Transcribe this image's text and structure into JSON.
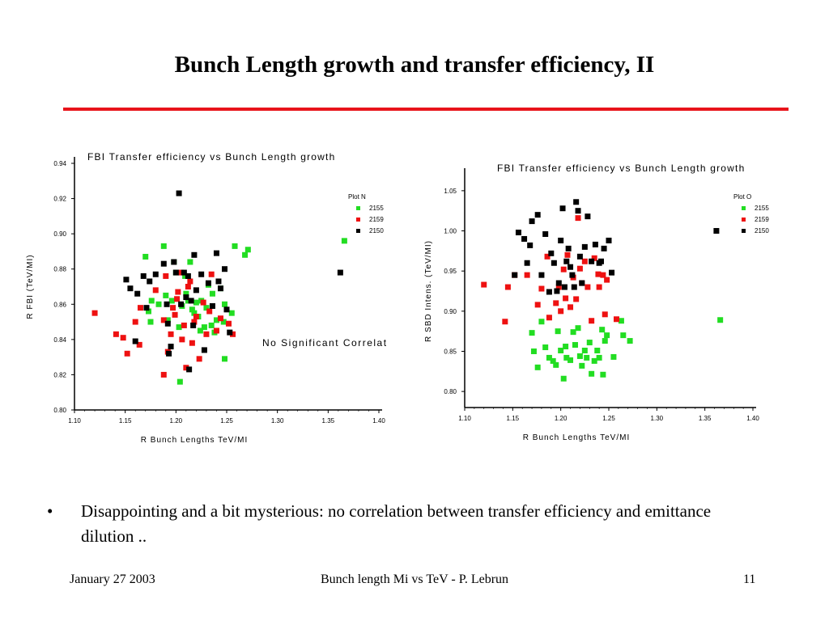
{
  "slide": {
    "title": "Bunch Length growth and transfer efficiency, II",
    "colors": {
      "rule": "#e8141b",
      "green": "#22dd22",
      "red": "#ee1111",
      "black": "#000000"
    },
    "bullet_marker": "•",
    "bullet_text": "Disappointing and a bit mysterious: no correlation between transfer efficiency and emittance dilution ..",
    "footer": {
      "date": "January  27  2003",
      "center": "Bunch length Mi vs TeV - P. Lebrun",
      "page": "11"
    }
  },
  "chart_data": [
    {
      "type": "scatter",
      "title": "FBI Transfer efficiency vs Bunch Length growth",
      "xlabel": "R Bunch Lengths TeV/MI",
      "ylabel": "R FBI (TeV/MI)",
      "xlim": [
        1.1,
        1.4
      ],
      "ylim": [
        0.8,
        0.94
      ],
      "xticks": [
        "1.10",
        "1.15",
        "1.20",
        "1.25",
        "1.30",
        "1.35",
        "1.40"
      ],
      "yticks": [
        "0.80",
        "0.82",
        "0.84",
        "0.86",
        "0.88",
        "0.90",
        "0.92",
        "0.94"
      ],
      "legend": {
        "title": "Plot N",
        "position": "top-right"
      },
      "annotation": "No Significant Correlat",
      "series": [
        {
          "name": "2155",
          "color": "#22dd22",
          "points": [
            [
              1.17,
              0.887
            ],
            [
              1.173,
              0.856
            ],
            [
              1.175,
              0.85
            ],
            [
              1.176,
              0.862
            ],
            [
              1.183,
              0.86
            ],
            [
              1.188,
              0.893
            ],
            [
              1.19,
              0.865
            ],
            [
              1.192,
              0.851
            ],
            [
              1.196,
              0.862
            ],
            [
              1.198,
              0.884
            ],
            [
              1.2,
              0.878
            ],
            [
              1.203,
              0.847
            ],
            [
              1.204,
              0.816
            ],
            [
              1.206,
              0.859
            ],
            [
              1.209,
              0.876
            ],
            [
              1.21,
              0.866
            ],
            [
              1.212,
              0.862
            ],
            [
              1.214,
              0.884
            ],
            [
              1.216,
              0.857
            ],
            [
              1.218,
              0.855
            ],
            [
              1.22,
              0.861
            ],
            [
              1.222,
              0.853
            ],
            [
              1.224,
              0.845
            ],
            [
              1.225,
              0.862
            ],
            [
              1.228,
              0.847
            ],
            [
              1.23,
              0.858
            ],
            [
              1.232,
              0.871
            ],
            [
              1.235,
              0.848
            ],
            [
              1.236,
              0.866
            ],
            [
              1.238,
              0.844
            ],
            [
              1.24,
              0.851
            ],
            [
              1.244,
              0.869
            ],
            [
              1.247,
              0.85
            ],
            [
              1.248,
              0.86
            ],
            [
              1.248,
              0.829
            ],
            [
              1.255,
              0.855
            ],
            [
              1.258,
              0.893
            ],
            [
              1.268,
              0.888
            ],
            [
              1.271,
              0.891
            ],
            [
              1.366,
              0.896
            ]
          ]
        },
        {
          "name": "2159",
          "color": "#ee1111",
          "points": [
            [
              1.12,
              0.855
            ],
            [
              1.141,
              0.843
            ],
            [
              1.148,
              0.841
            ],
            [
              1.152,
              0.832
            ],
            [
              1.16,
              0.85
            ],
            [
              1.164,
              0.837
            ],
            [
              1.165,
              0.858
            ],
            [
              1.18,
              0.868
            ],
            [
              1.188,
              0.851
            ],
            [
              1.188,
              0.82
            ],
            [
              1.19,
              0.876
            ],
            [
              1.192,
              0.833
            ],
            [
              1.195,
              0.843
            ],
            [
              1.197,
              0.858
            ],
            [
              1.199,
              0.854
            ],
            [
              1.201,
              0.863
            ],
            [
              1.202,
              0.867
            ],
            [
              1.205,
              0.878
            ],
            [
              1.206,
              0.84
            ],
            [
              1.208,
              0.848
            ],
            [
              1.21,
              0.824
            ],
            [
              1.212,
              0.87
            ],
            [
              1.214,
              0.873
            ],
            [
              1.216,
              0.838
            ],
            [
              1.218,
              0.85
            ],
            [
              1.22,
              0.853
            ],
            [
              1.223,
              0.829
            ],
            [
              1.227,
              0.861
            ],
            [
              1.23,
              0.843
            ],
            [
              1.233,
              0.856
            ],
            [
              1.235,
              0.877
            ],
            [
              1.24,
              0.845
            ],
            [
              1.244,
              0.852
            ],
            [
              1.252,
              0.849
            ],
            [
              1.256,
              0.843
            ]
          ]
        },
        {
          "name": "2150",
          "color": "#000000",
          "points": [
            [
              1.151,
              0.874
            ],
            [
              1.155,
              0.869
            ],
            [
              1.16,
              0.839
            ],
            [
              1.162,
              0.866
            ],
            [
              1.168,
              0.876
            ],
            [
              1.171,
              0.858
            ],
            [
              1.174,
              0.873
            ],
            [
              1.18,
              0.877
            ],
            [
              1.188,
              0.883
            ],
            [
              1.191,
              0.86
            ],
            [
              1.192,
              0.849
            ],
            [
              1.193,
              0.832
            ],
            [
              1.195,
              0.836
            ],
            [
              1.198,
              0.884
            ],
            [
              1.2,
              0.878
            ],
            [
              1.203,
              0.923
            ],
            [
              1.205,
              0.86
            ],
            [
              1.208,
              0.878
            ],
            [
              1.21,
              0.864
            ],
            [
              1.212,
              0.876
            ],
            [
              1.213,
              0.823
            ],
            [
              1.215,
              0.862
            ],
            [
              1.217,
              0.848
            ],
            [
              1.218,
              0.888
            ],
            [
              1.22,
              0.868
            ],
            [
              1.225,
              0.877
            ],
            [
              1.228,
              0.834
            ],
            [
              1.232,
              0.872
            ],
            [
              1.236,
              0.859
            ],
            [
              1.24,
              0.889
            ],
            [
              1.242,
              0.873
            ],
            [
              1.244,
              0.869
            ],
            [
              1.248,
              0.88
            ],
            [
              1.25,
              0.857
            ],
            [
              1.253,
              0.844
            ],
            [
              1.362,
              0.878
            ]
          ]
        }
      ]
    },
    {
      "type": "scatter",
      "title": "FBI Transfer efficiency vs Bunch Length growth",
      "xlabel": "R Bunch Lengths TeV/MI",
      "ylabel": "R SBD Intens. (TeV/MI)",
      "xlim": [
        1.1,
        1.4
      ],
      "ylim": [
        0.78,
        1.07
      ],
      "xticks": [
        "1.10",
        "1.15",
        "1.20",
        "1.25",
        "1.30",
        "1.35",
        "1.40"
      ],
      "yticks": [
        "0.80",
        "0.85",
        "0.90",
        "0.95",
        "1.00",
        "1.05"
      ],
      "legend": {
        "title": "Plot O",
        "position": "top-right"
      },
      "series": [
        {
          "name": "2155",
          "color": "#22dd22",
          "points": [
            [
              1.17,
              0.873
            ],
            [
              1.172,
              0.85
            ],
            [
              1.176,
              0.83
            ],
            [
              1.18,
              0.887
            ],
            [
              1.184,
              0.855
            ],
            [
              1.188,
              0.842
            ],
            [
              1.192,
              0.838
            ],
            [
              1.195,
              0.833
            ],
            [
              1.197,
              0.875
            ],
            [
              1.2,
              0.851
            ],
            [
              1.203,
              0.816
            ],
            [
              1.205,
              0.856
            ],
            [
              1.206,
              0.842
            ],
            [
              1.21,
              0.839
            ],
            [
              1.213,
              0.874
            ],
            [
              1.215,
              0.858
            ],
            [
              1.218,
              0.879
            ],
            [
              1.22,
              0.844
            ],
            [
              1.222,
              0.832
            ],
            [
              1.225,
              0.851
            ],
            [
              1.227,
              0.842
            ],
            [
              1.23,
              0.861
            ],
            [
              1.232,
              0.822
            ],
            [
              1.235,
              0.838
            ],
            [
              1.238,
              0.851
            ],
            [
              1.24,
              0.842
            ],
            [
              1.243,
              0.877
            ],
            [
              1.244,
              0.821
            ],
            [
              1.246,
              0.863
            ],
            [
              1.248,
              0.87
            ],
            [
              1.255,
              0.843
            ],
            [
              1.265,
              0.87
            ],
            [
              1.272,
              0.863
            ],
            [
              1.263,
              0.888
            ],
            [
              1.366,
              0.889
            ]
          ]
        },
        {
          "name": "2159",
          "color": "#ee1111",
          "points": [
            [
              1.12,
              0.933
            ],
            [
              1.142,
              0.887
            ],
            [
              1.145,
              0.93
            ],
            [
              1.152,
              0.945
            ],
            [
              1.165,
              0.945
            ],
            [
              1.176,
              0.908
            ],
            [
              1.18,
              0.928
            ],
            [
              1.186,
              0.968
            ],
            [
              1.188,
              0.892
            ],
            [
              1.195,
              0.91
            ],
            [
              1.198,
              0.93
            ],
            [
              1.2,
              0.9
            ],
            [
              1.203,
              0.952
            ],
            [
              1.205,
              0.916
            ],
            [
              1.207,
              0.97
            ],
            [
              1.21,
              0.905
            ],
            [
              1.213,
              0.942
            ],
            [
              1.216,
              0.915
            ],
            [
              1.22,
              0.953
            ],
            [
              1.222,
              0.935
            ],
            [
              1.225,
              0.962
            ],
            [
              1.228,
              0.93
            ],
            [
              1.232,
              0.888
            ],
            [
              1.235,
              0.966
            ],
            [
              1.239,
              0.946
            ],
            [
              1.24,
              0.93
            ],
            [
              1.244,
              0.945
            ],
            [
              1.246,
              0.896
            ],
            [
              1.248,
              0.939
            ],
            [
              1.258,
              0.89
            ],
            [
              1.218,
              1.016
            ]
          ]
        },
        {
          "name": "2150",
          "color": "#000000",
          "points": [
            [
              1.152,
              0.945
            ],
            [
              1.156,
              0.998
            ],
            [
              1.162,
              0.99
            ],
            [
              1.165,
              0.96
            ],
            [
              1.168,
              0.982
            ],
            [
              1.17,
              1.012
            ],
            [
              1.176,
              1.02
            ],
            [
              1.18,
              0.945
            ],
            [
              1.184,
              0.996
            ],
            [
              1.188,
              0.924
            ],
            [
              1.19,
              0.972
            ],
            [
              1.193,
              0.96
            ],
            [
              1.196,
              0.925
            ],
            [
              1.198,
              0.935
            ],
            [
              1.2,
              0.988
            ],
            [
              1.202,
              1.028
            ],
            [
              1.204,
              0.93
            ],
            [
              1.206,
              0.962
            ],
            [
              1.208,
              0.978
            ],
            [
              1.21,
              0.955
            ],
            [
              1.212,
              0.945
            ],
            [
              1.214,
              0.93
            ],
            [
              1.216,
              1.036
            ],
            [
              1.218,
              1.025
            ],
            [
              1.22,
              0.968
            ],
            [
              1.222,
              0.935
            ],
            [
              1.225,
              0.98
            ],
            [
              1.228,
              1.018
            ],
            [
              1.232,
              0.962
            ],
            [
              1.236,
              0.983
            ],
            [
              1.24,
              0.96
            ],
            [
              1.242,
              0.962
            ],
            [
              1.245,
              0.978
            ],
            [
              1.25,
              0.988
            ],
            [
              1.253,
              0.948
            ],
            [
              1.362,
              1.0
            ]
          ]
        }
      ]
    }
  ]
}
